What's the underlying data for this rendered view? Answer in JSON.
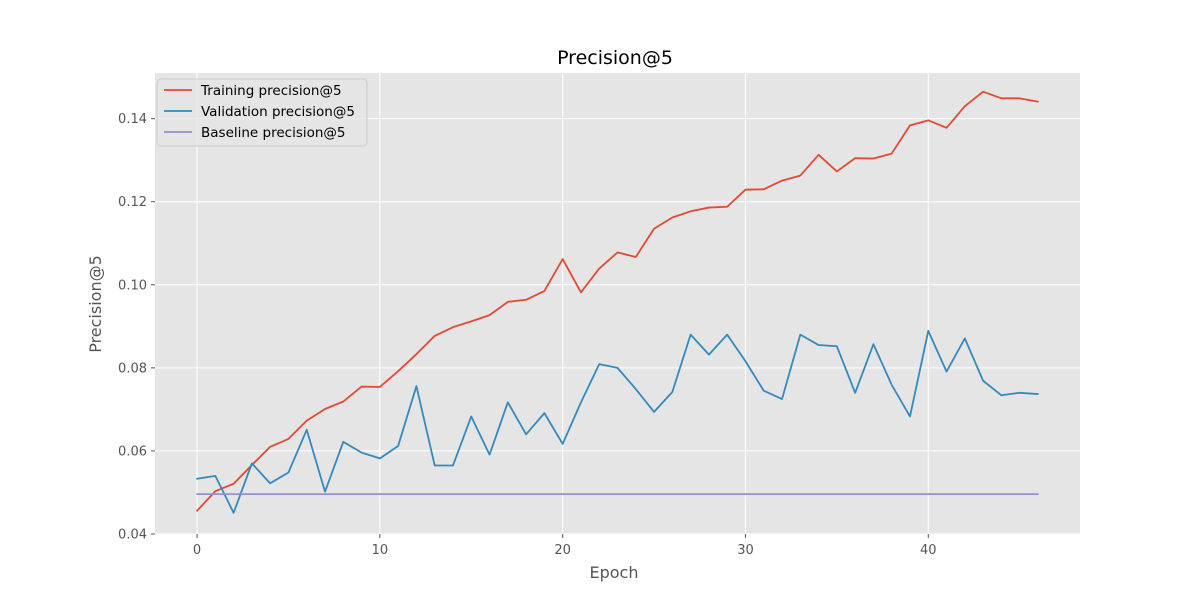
{
  "chart_data": {
    "type": "line",
    "title": "Precision@5",
    "xlabel": "Epoch",
    "ylabel": "Precision@5",
    "xlim": [
      -2.3,
      48.3
    ],
    "ylim": [
      0.04,
      0.151
    ],
    "x_ticks": [
      0,
      10,
      20,
      30,
      40
    ],
    "y_ticks": [
      0.04,
      0.06,
      0.08,
      0.1,
      0.12,
      0.14
    ],
    "y_tick_labels": [
      "0.04",
      "0.06",
      "0.08",
      "0.10",
      "0.12",
      "0.14"
    ],
    "grid": true,
    "legend_position": "top-left",
    "background_color": "#e5e5e5",
    "series": [
      {
        "name": "Training precision@5",
        "color": "#e24a33",
        "x": [
          0,
          1,
          2,
          3,
          4,
          5,
          6,
          7,
          8,
          9,
          10,
          11,
          12,
          13,
          14,
          15,
          16,
          17,
          18,
          19,
          20,
          21,
          22,
          23,
          24,
          25,
          26,
          27,
          28,
          29,
          30,
          31,
          32,
          33,
          34,
          35,
          36,
          37,
          38,
          39,
          40,
          41,
          42,
          43,
          44,
          45,
          46
        ],
        "values": [
          0.0456,
          0.0503,
          0.0521,
          0.0566,
          0.061,
          0.0629,
          0.0673,
          0.0701,
          0.0719,
          0.0755,
          0.0754,
          0.0792,
          0.0833,
          0.0877,
          0.0898,
          0.0912,
          0.0927,
          0.0959,
          0.0964,
          0.0985,
          0.1062,
          0.0982,
          0.1039,
          0.1078,
          0.1067,
          0.1135,
          0.1162,
          0.1177,
          0.1186,
          0.1188,
          0.1229,
          0.123,
          0.1251,
          0.1263,
          0.1313,
          0.1273,
          0.1305,
          0.1304,
          0.1316,
          0.1384,
          0.1396,
          0.1378,
          0.143,
          0.1465,
          0.1449,
          0.1449,
          0.1441
        ]
      },
      {
        "name": "Validation precision@5",
        "color": "#348abd",
        "x": [
          0,
          1,
          2,
          3,
          4,
          5,
          6,
          7,
          8,
          9,
          10,
          11,
          12,
          13,
          14,
          15,
          16,
          17,
          18,
          19,
          20,
          21,
          22,
          23,
          24,
          25,
          26,
          27,
          28,
          29,
          30,
          31,
          32,
          33,
          34,
          35,
          36,
          37,
          38,
          39,
          40,
          41,
          42,
          43,
          44,
          45,
          46
        ],
        "values": [
          0.0533,
          0.054,
          0.0451,
          0.057,
          0.0522,
          0.0548,
          0.0651,
          0.0502,
          0.0622,
          0.0596,
          0.0582,
          0.0612,
          0.0756,
          0.0565,
          0.0565,
          0.0683,
          0.0591,
          0.0717,
          0.064,
          0.0691,
          0.0617,
          0.0717,
          0.0809,
          0.08,
          0.0749,
          0.0694,
          0.0742,
          0.088,
          0.0832,
          0.088,
          0.0816,
          0.0745,
          0.0725,
          0.088,
          0.0855,
          0.0852,
          0.074,
          0.0857,
          0.0759,
          0.0683,
          0.0889,
          0.0791,
          0.0871,
          0.0769,
          0.0734,
          0.074,
          0.0737
        ]
      },
      {
        "name": "Baseline precision@5",
        "color": "#988ed5",
        "x": [
          0,
          46
        ],
        "values": [
          0.0496,
          0.0496
        ]
      }
    ]
  }
}
